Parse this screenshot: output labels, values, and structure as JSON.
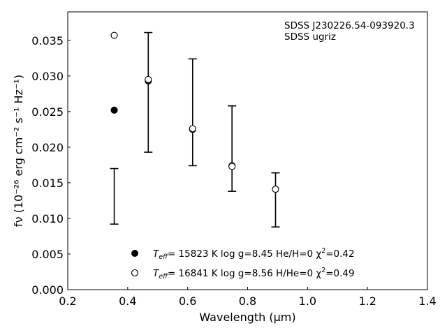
{
  "chart_data": {
    "type": "scatter",
    "xlabel": "Wavelength (μm)",
    "ylabel": "fν (10⁻²⁶ erg cm⁻² s⁻¹ Hz⁻¹)",
    "xlim": [
      0.2,
      1.4
    ],
    "ylim": [
      0.0,
      0.039
    ],
    "xticks": [
      0.2,
      0.4,
      0.6,
      0.8,
      1.0,
      1.2,
      1.4
    ],
    "xtick_labels": [
      "0.2",
      "0.4",
      "0.6",
      "0.8",
      "1.0",
      "1.2",
      "1.4"
    ],
    "yticks": [
      0.0,
      0.005,
      0.01,
      0.015,
      0.02,
      0.025,
      0.03,
      0.035
    ],
    "ytick_labels": [
      "0.000",
      "0.005",
      "0.010",
      "0.015",
      "0.020",
      "0.025",
      "0.030",
      "0.035"
    ],
    "grid": false,
    "annotations": [
      "SDSS J230226.54-093920.3",
      "SDSS ugriz"
    ],
    "observed": {
      "x": [
        0.3551,
        0.4686,
        0.6166,
        0.748,
        0.8932
      ],
      "y": [
        0.0131,
        0.0277,
        0.0249,
        0.0198,
        0.0126
      ],
      "yerr": [
        0.0039,
        0.0084,
        0.0075,
        0.006,
        0.0038
      ],
      "style": "errorbar-caps"
    },
    "series": [
      {
        "marker": "filled-circle",
        "label_parts": [
          "T",
          "eff",
          "= 15823 K  log g=8.45  He/H=0  χ",
          "2",
          "=0.42"
        ],
        "x": [
          0.3551,
          0.4686,
          0.6166,
          0.748,
          0.8932
        ],
        "y": [
          0.0252,
          0.0293,
          0.0225,
          0.0174,
          0.0141
        ]
      },
      {
        "marker": "open-circle",
        "label_parts": [
          "T",
          "eff",
          "= 16841 K  log g=8.56  H/He=0  χ",
          "2",
          "=0.49"
        ],
        "x": [
          0.3551,
          0.4686,
          0.6166,
          0.748,
          0.8932
        ],
        "y": [
          0.0357,
          0.0295,
          0.0226,
          0.0173,
          0.0141
        ]
      }
    ],
    "legend_position": "lower-center"
  }
}
